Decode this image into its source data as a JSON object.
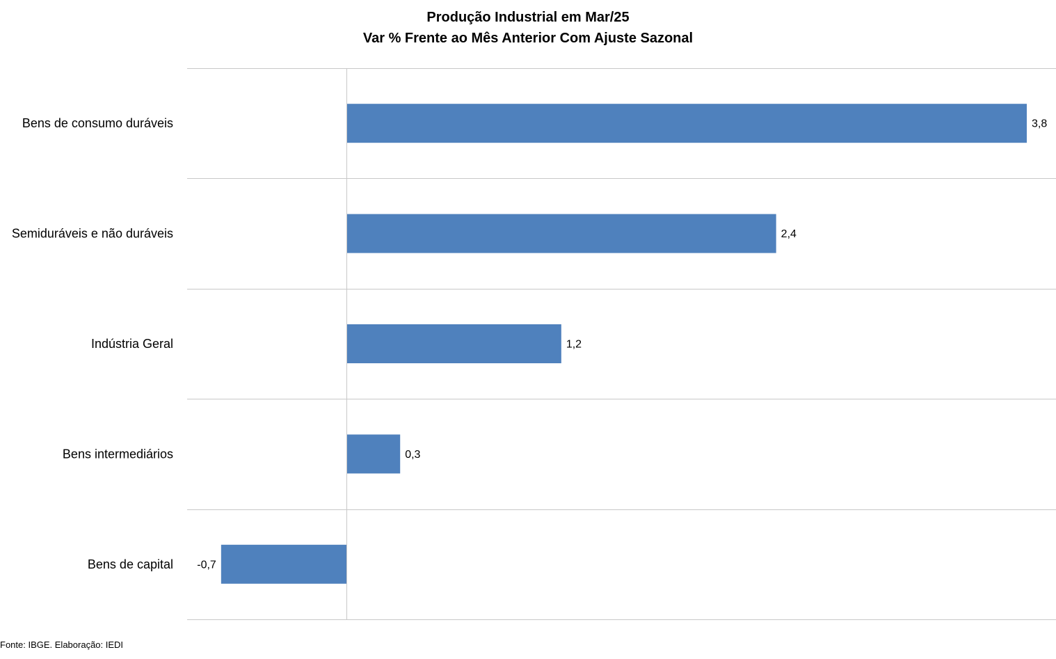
{
  "chart_data": {
    "type": "bar",
    "orientation": "horizontal",
    "title": "Produção Industrial em Mar/25",
    "subtitle": "Var % Frente ao Mês Anterior Com Ajuste Sazonal",
    "categories": [
      "Bens de consumo duráveis",
      "Semiduráveis e não duráveis",
      "Indústria Geral",
      "Bens intermediários",
      "Bens de capital"
    ],
    "values": [
      3.8,
      2.4,
      1.2,
      0.3,
      -0.7
    ],
    "value_labels": [
      "3,8",
      "2,4",
      "1,2",
      "0,3",
      "-0,7"
    ],
    "xlim": [
      -0.9,
      4.0
    ],
    "bar_color": "#4f81bd",
    "grid_color": "#c8c8c8",
    "grid": "horizontal-category-separators",
    "legend": "none"
  },
  "source": "Fonte: IBGE. Elaboração: IEDI"
}
